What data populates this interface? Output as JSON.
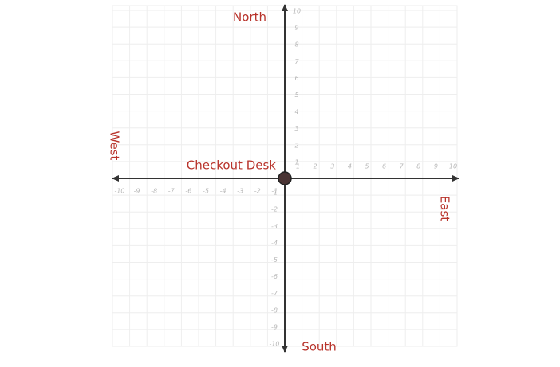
{
  "chart_data": {
    "type": "scatter",
    "xlim": [
      -10,
      10
    ],
    "ylim": [
      -10,
      10
    ],
    "xticks": [
      -10,
      -9,
      -8,
      -7,
      -6,
      -5,
      -4,
      -3,
      -2,
      -1,
      1,
      2,
      3,
      4,
      5,
      6,
      7,
      8,
      9,
      10
    ],
    "yticks": [
      -10,
      -9,
      -8,
      -7,
      -6,
      -5,
      -4,
      -3,
      -2,
      -1,
      1,
      2,
      3,
      4,
      5,
      6,
      7,
      8,
      9,
      10
    ],
    "grid": true,
    "series": [
      {
        "name": "Checkout Desk",
        "color": "#4a3434",
        "x": [
          0
        ],
        "y": [
          0
        ]
      }
    ],
    "annotations": [
      "North",
      "South",
      "East",
      "West"
    ]
  }
}
